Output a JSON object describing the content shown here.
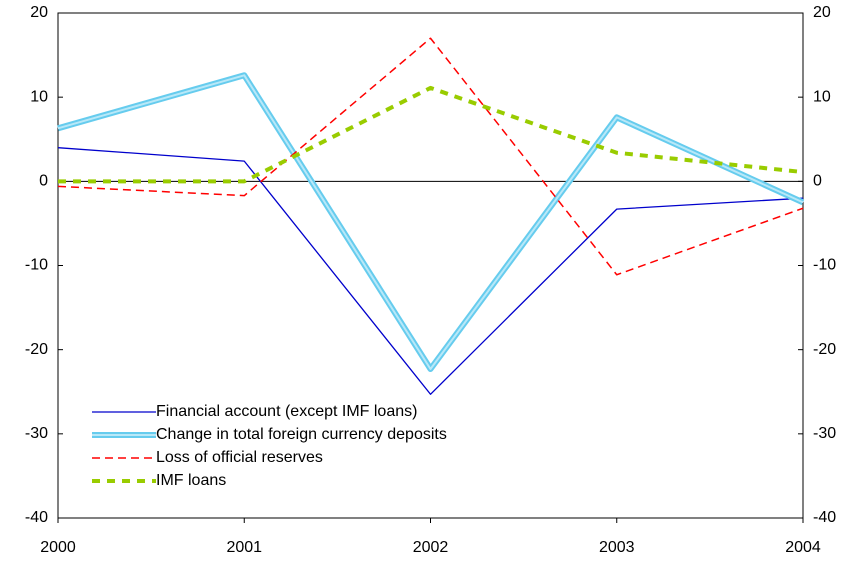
{
  "chart_data": {
    "type": "line",
    "x": [
      2000,
      2001,
      2002,
      2003,
      2004
    ],
    "xlim": [
      2000,
      2004
    ],
    "xticks": [
      2000,
      2001,
      2002,
      2003,
      2004
    ],
    "ylim": [
      -40,
      20
    ],
    "yticks": [
      -40,
      -30,
      -20,
      -10,
      0,
      10,
      20
    ],
    "y2lim": [
      -40,
      20
    ],
    "y2ticks": [
      -40,
      -30,
      -20,
      -10,
      0,
      10,
      20
    ],
    "grid": false,
    "legend": "lower left",
    "series": [
      {
        "name": "Financial account (except IMF loans)",
        "color": "#0000cc",
        "style": "solid",
        "values": [
          4.0,
          2.4,
          -25.3,
          -3.3,
          -2.0
        ]
      },
      {
        "name": "Change in total foreign currency deposits",
        "color": "#66ccee",
        "style": "double",
        "values": [
          6.3,
          12.6,
          -22.3,
          7.6,
          -2.5
        ]
      },
      {
        "name": "Loss of official reserves",
        "color": "#ff0000",
        "style": "dashed",
        "values": [
          -0.6,
          -1.7,
          17.0,
          -11.1,
          -3.2
        ]
      },
      {
        "name": "IMF loans",
        "color": "#99cc00",
        "style": "thickdash",
        "values": [
          0,
          0,
          11.1,
          3.4,
          1.1
        ]
      }
    ]
  }
}
